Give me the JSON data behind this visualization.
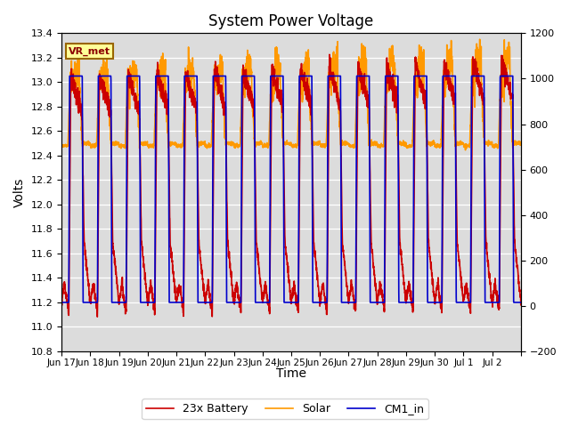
{
  "title": "System Power Voltage",
  "xlabel": "Time",
  "ylabel_left": "Volts",
  "ylim_left": [
    10.8,
    13.4
  ],
  "ylim_right": [
    -200,
    1200
  ],
  "yticks_left": [
    10.8,
    11.0,
    11.2,
    11.4,
    11.6,
    11.8,
    12.0,
    12.2,
    12.4,
    12.6,
    12.8,
    13.0,
    13.2,
    13.4
  ],
  "yticks_right": [
    -200,
    0,
    200,
    400,
    600,
    800,
    1000,
    1200
  ],
  "xtick_positions": [
    0,
    1,
    2,
    3,
    4,
    5,
    6,
    7,
    8,
    9,
    10,
    11,
    12,
    13,
    14,
    15,
    16
  ],
  "xtick_labels": [
    "Jun 17",
    "Jun 18",
    "Jun 19",
    "Jun 20",
    "Jun 21",
    "Jun 22",
    "Jun 23",
    "Jun 24",
    "Jun 25",
    "Jun 26",
    "Jun 27",
    "Jun 28",
    "Jun 29",
    "Jun 30",
    "Jul 1",
    "Jul 2",
    ""
  ],
  "plot_bg_color": "#dcdcdc",
  "fig_bg_color": "#ffffff",
  "line_colors": {
    "battery": "#cc0000",
    "solar": "#ff9900",
    "cm1": "#0000cc"
  },
  "line_widths": {
    "battery": 1.2,
    "solar": 1.2,
    "cm1": 1.2
  },
  "legend_labels": [
    "23x Battery",
    "Solar",
    "CM1_in"
  ],
  "vr_met_label": "VR_met",
  "n_days": 16,
  "pts_per_day": 200
}
